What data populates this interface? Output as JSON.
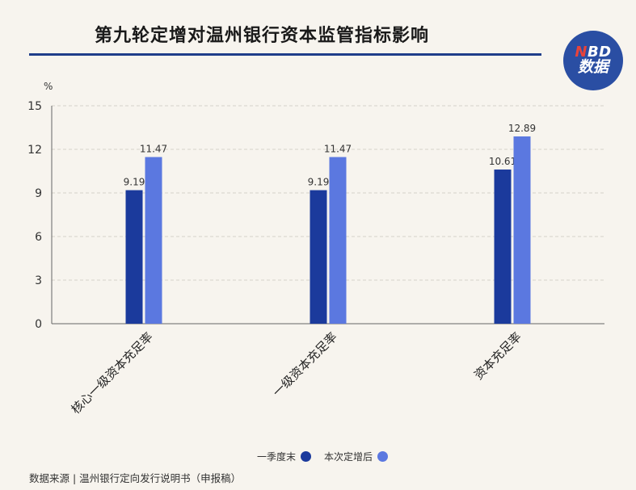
{
  "title": "第九轮定增对温州银行资本监管指标影响",
  "logo": {
    "line1_n": "N",
    "line1_rest": "BD",
    "line2": "数据"
  },
  "source": "数据来源 | 温州银行定向发行说明书（申报稿）",
  "colors": {
    "series1": "#1b3a9c",
    "series2": "#5b78e0",
    "grid": "#d6d2ca",
    "axis": "#666666",
    "accent": "#1f3e8a"
  },
  "chart_data": {
    "type": "bar",
    "unit_label": "%",
    "categories": [
      "核心一级资本充足率",
      "一级资本充足率",
      "资本充足率"
    ],
    "series": [
      {
        "name": "一季度末",
        "values": [
          9.19,
          9.19,
          10.61
        ],
        "labels": [
          "9.19",
          "9.19",
          "10.61"
        ]
      },
      {
        "name": "本次定增后",
        "values": [
          11.47,
          11.47,
          12.89
        ],
        "labels": [
          "11.47",
          "11.47",
          "12.89"
        ]
      }
    ],
    "yticks": [
      0,
      3,
      6,
      9,
      12,
      15
    ],
    "ylim": [
      0,
      15
    ],
    "grid": true,
    "legend_position": "bottom"
  }
}
